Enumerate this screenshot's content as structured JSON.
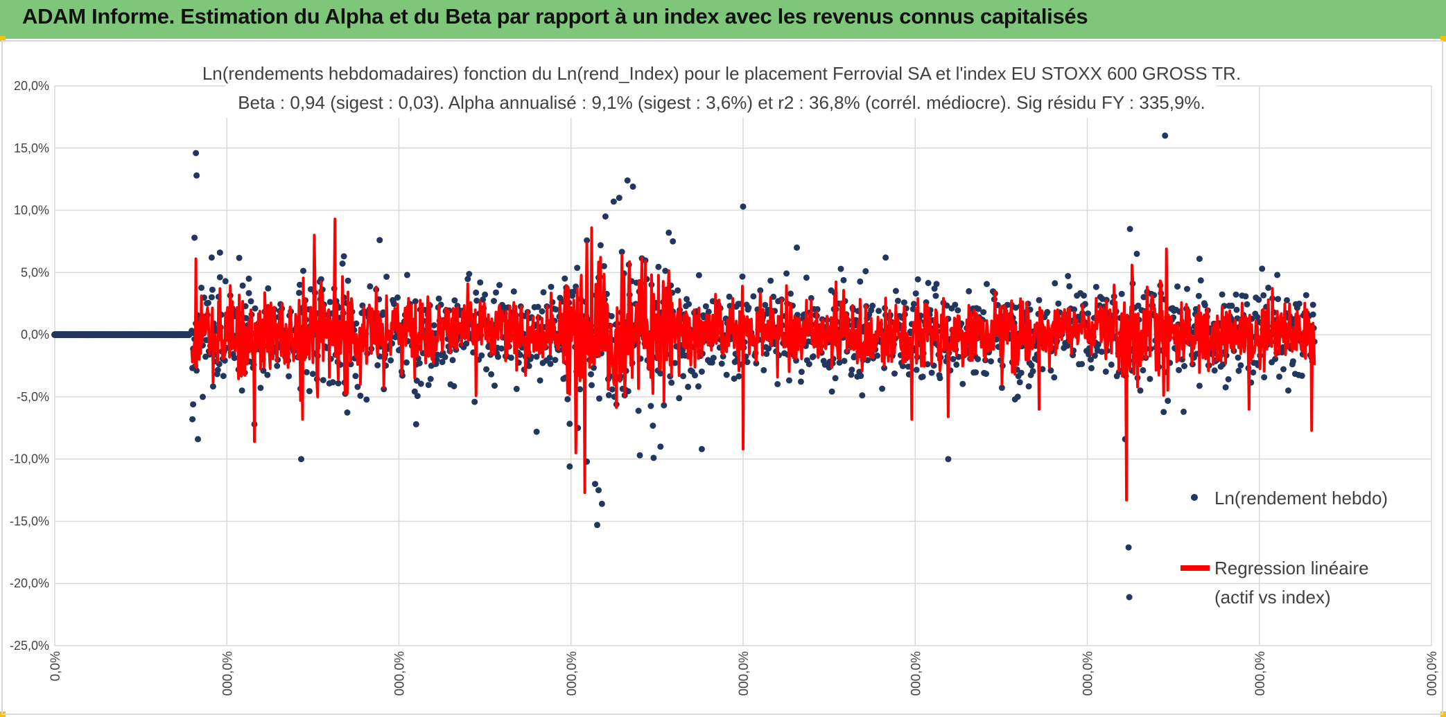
{
  "header": {
    "title": "ADAM Informe. Estimation du Alpha et du Beta par rapport à un index avec les revenus connus capitalisés"
  },
  "colors": {
    "header_bg": "#7dc67a",
    "scatter": "#22375e",
    "regression": "#ff0000",
    "grid": "#d9d9d9",
    "corner": "#f2c200"
  },
  "chart_data": {
    "type": "scatter",
    "title": "Ln(rendements hebdomadaires) fonction du Ln(rend_Index) pour le placement Ferrovial SA et l'index EU STOXX 600 GROSS TR.",
    "subtitle": "Beta : 0,94 (sigest : 0,03). Alpha annualisé : 9,1% (sigest : 3,6%) et r2 : 36,8% (corrél. médiocre). Sig résidu FY : 335,9%.",
    "ylim": [
      -25,
      20
    ],
    "yticks": [
      20,
      15,
      10,
      5,
      0,
      -5,
      -10,
      -15,
      -20,
      -25
    ],
    "ytick_labels": [
      "20,0%",
      "15,0%",
      "10,0%",
      "5,0%",
      "0,0%",
      "-5,0%",
      "-10,0%",
      "-15,0%",
      "-20,0%",
      "-25,0%"
    ],
    "xlim": [
      0,
      2000
    ],
    "xticks": [
      0,
      250,
      500,
      750,
      1000,
      1250,
      1500,
      1750,
      2000
    ],
    "xtick_labels": [
      "0,0%",
      "000,0%",
      "000,0%",
      "000,0%",
      "000,0%",
      "000,0%",
      "000,0%",
      "000,0%",
      "000,0%"
    ],
    "legend_position": "right",
    "grid": true,
    "series": [
      {
        "name": "Ln(rendement hebdo)",
        "kind": "scatter",
        "color": "#22375e",
        "zero_run": [
          0,
          195
        ],
        "notable_points": [
          [
            200,
            -6.8
          ],
          [
            201,
            -5.6
          ],
          [
            203,
            7.8
          ],
          [
            205,
            14.6
          ],
          [
            206,
            12.8
          ],
          [
            208,
            -8.4
          ],
          [
            215,
            -5.0
          ],
          [
            228,
            6.2
          ],
          [
            240,
            6.6
          ],
          [
            282,
            4.5
          ],
          [
            290,
            -7.2
          ],
          [
            358,
            -10.0
          ],
          [
            420,
            6.3
          ],
          [
            472,
            7.6
          ],
          [
            525,
            -7.2
          ],
          [
            610,
            -5.4
          ],
          [
            700,
            -7.8
          ],
          [
            748,
            -10.6
          ],
          [
            760,
            -7.5
          ],
          [
            773,
            -10.2
          ],
          [
            785,
            -12.0
          ],
          [
            790,
            -12.5
          ],
          [
            795,
            -13.6
          ],
          [
            788,
            -15.3
          ],
          [
            800,
            9.5
          ],
          [
            812,
            10.7
          ],
          [
            820,
            11.0
          ],
          [
            832,
            12.4
          ],
          [
            840,
            11.9
          ],
          [
            850,
            -9.7
          ],
          [
            870,
            -9.9
          ],
          [
            880,
            -9.0
          ],
          [
            892,
            8.2
          ],
          [
            898,
            7.5
          ],
          [
            940,
            -9.2
          ],
          [
            1000,
            10.3
          ],
          [
            1078,
            7.0
          ],
          [
            1207,
            6.2
          ],
          [
            1298,
            -10.0
          ],
          [
            1555,
            -8.4
          ],
          [
            1560,
            -17.1
          ],
          [
            1561,
            -21.1
          ],
          [
            1562,
            8.5
          ],
          [
            1572,
            6.5
          ],
          [
            1613,
            16.0
          ],
          [
            1640,
            -6.2
          ],
          [
            1663,
            6.1
          ],
          [
            1754,
            5.3
          ],
          [
            1776,
            4.8
          ],
          [
            1828,
            2.4
          ]
        ]
      },
      {
        "name": "Regression linéaire (actif vs index)",
        "kind": "line",
        "color": "#ff0000",
        "notable_points": [
          [
            200,
            -2.2
          ],
          [
            205,
            6.1
          ],
          [
            208,
            -1.0
          ],
          [
            290,
            -8.6
          ],
          [
            360,
            -6.8
          ],
          [
            377,
            8.0
          ],
          [
            382,
            -5.0
          ],
          [
            407,
            9.3
          ],
          [
            612,
            -4.9
          ],
          [
            757,
            -9.5
          ],
          [
            770,
            -12.7
          ],
          [
            780,
            8.6
          ],
          [
            1000,
            -9.2
          ],
          [
            1245,
            -6.8
          ],
          [
            1298,
            -6.6
          ],
          [
            1430,
            -6.0
          ],
          [
            1557,
            -13.3
          ],
          [
            1565,
            5.6
          ],
          [
            1615,
            6.9
          ],
          [
            1735,
            -6.0
          ],
          [
            1826,
            -7.7
          ]
        ]
      }
    ],
    "legend": {
      "scatter_label": "Ln(rendement hebdo)",
      "line_label_1": "Regression linéaire",
      "line_label_2": "(actif vs index)"
    }
  }
}
